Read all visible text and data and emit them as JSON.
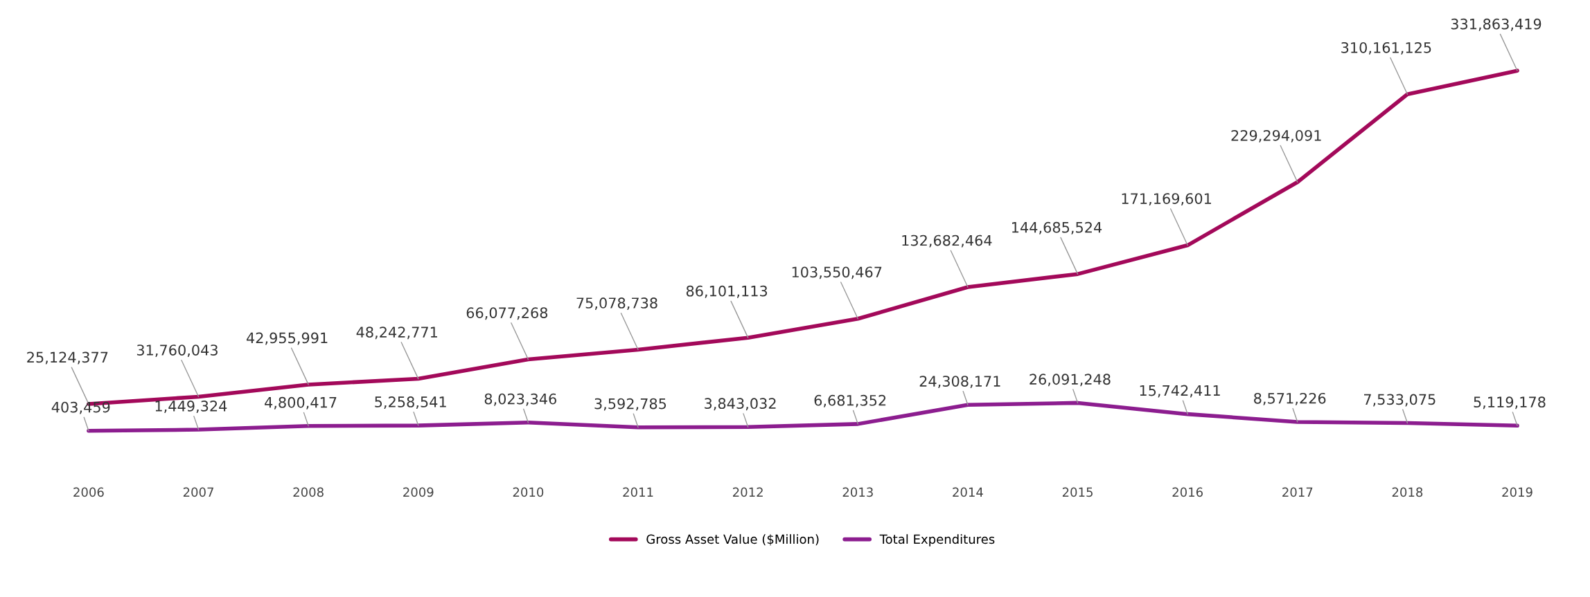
{
  "chart_data": {
    "type": "line",
    "categories": [
      "2006",
      "2007",
      "2008",
      "2009",
      "2010",
      "2011",
      "2012",
      "2013",
      "2014",
      "2015",
      "2016",
      "2017",
      "2018",
      "2019"
    ],
    "series": [
      {
        "name": "Gross Asset Value ($Million)",
        "color": "#a3095a",
        "values": [
          25124377,
          31760043,
          42955991,
          48242771,
          66077268,
          75078738,
          86101113,
          103550467,
          132682464,
          144685524,
          171169601,
          229294091,
          310161125,
          331863419
        ],
        "value_labels": [
          "25,124,377",
          "31,760,043",
          "42,955,991",
          "48,242,771",
          "66,077,268",
          "75,078,738",
          "86,101,113",
          "103,550,467",
          "132,682,464",
          "144,685,524",
          "171,169,601",
          "229,294,091",
          "310,161,125",
          "331,863,419"
        ]
      },
      {
        "name": "Total Expenditures",
        "color": "#8c1d8f",
        "values": [
          403459,
          1449324,
          4800417,
          5258541,
          8023346,
          3592785,
          3843032,
          6681352,
          24308171,
          26091248,
          15742411,
          8571226,
          7533075,
          5119178
        ],
        "value_labels": [
          "403,459",
          "1,449,324",
          "4,800,417",
          "5,258,541",
          "8,023,346",
          "3,592,785",
          "3,843,032",
          "6,681,352",
          "24,308,171",
          "26,091,248",
          "15,742,411",
          "8,571,226",
          "7,533,075",
          "5,119,178"
        ]
      }
    ],
    "legend": "bottom",
    "grid": false,
    "tick_labels": "x",
    "marker": "none",
    "line_style": "solid"
  }
}
